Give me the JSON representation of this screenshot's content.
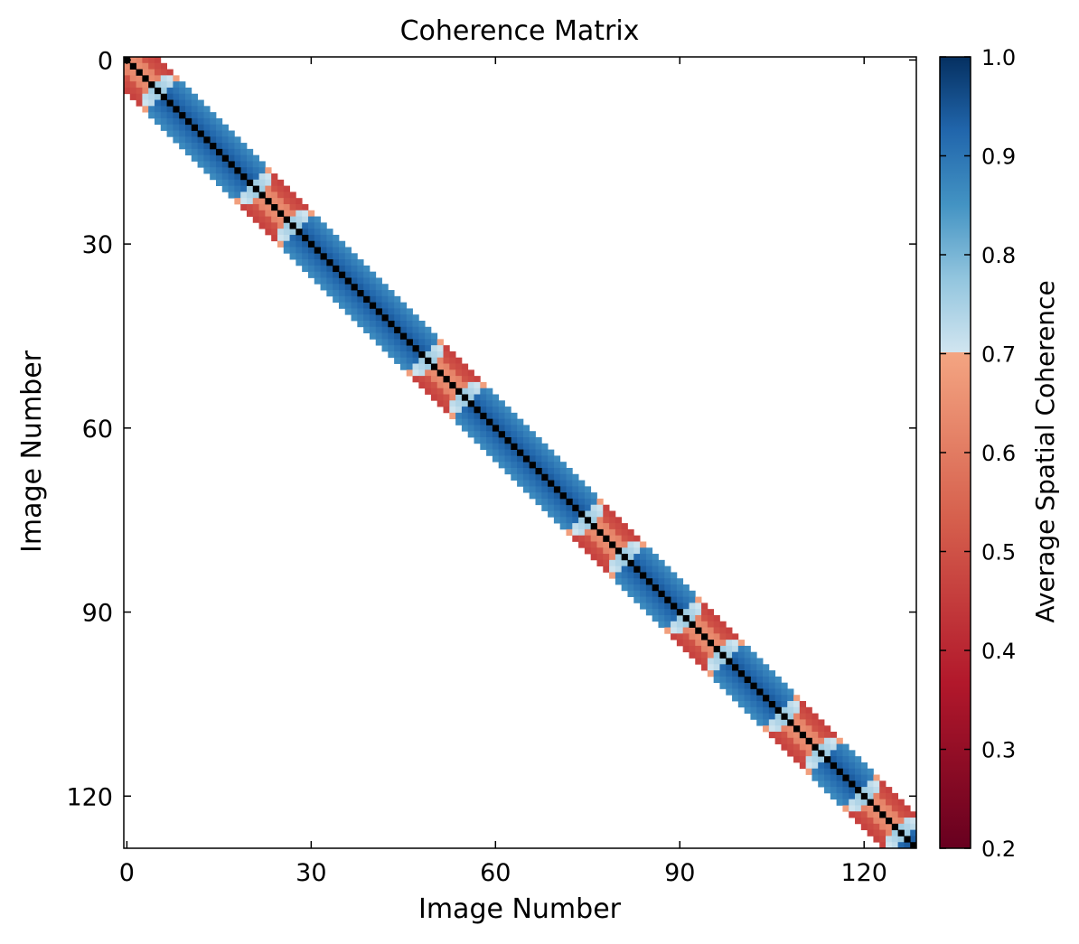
{
  "chart_data": {
    "type": "heatmap",
    "title": "Coherence Matrix",
    "xlabel": "Image Number",
    "ylabel": "Image Number",
    "n_images": 129,
    "x_ticks": [
      0,
      30,
      60,
      90,
      120
    ],
    "y_ticks": [
      0,
      30,
      60,
      90,
      120
    ],
    "band_half_width": 5,
    "low_coherence_centers": [
      2,
      24,
      52,
      78,
      94,
      110,
      123
    ],
    "diagonal_value": 1.0,
    "colorbar": {
      "label": "Average Spatial Coherence",
      "range": [
        0.2,
        1.0
      ],
      "ticks": [
        "0.2",
        "0.3",
        "0.4",
        "0.5",
        "0.6",
        "0.7",
        "0.8",
        "0.9",
        "1.0"
      ],
      "threshold": 0.7,
      "colors_high": [
        "#d1e5f0",
        "#92c5de",
        "#4393c3",
        "#2166ac",
        "#053061"
      ],
      "colors_low": [
        "#67001f",
        "#b2182b",
        "#d6604d",
        "#f4a582"
      ]
    },
    "grid": false,
    "tick_direction": "in"
  }
}
